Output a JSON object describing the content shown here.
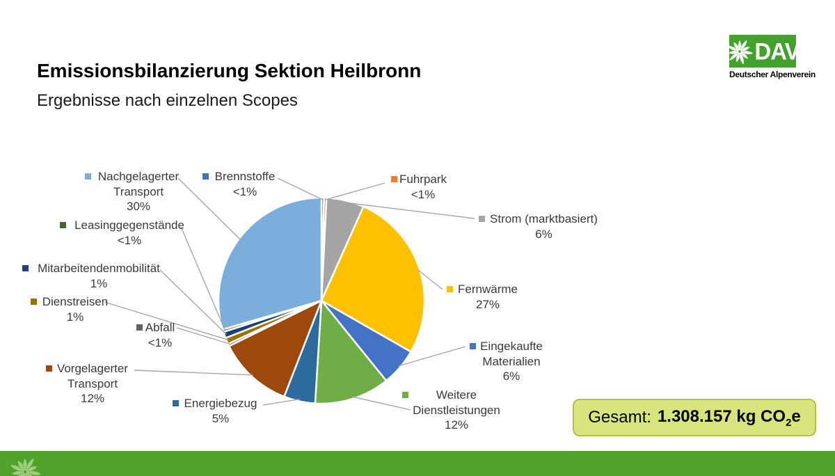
{
  "slide": {
    "title": "Emissionsbilanzierung Sektion Heilbronn",
    "subtitle": "Ergebnisse nach einzelnen Scopes",
    "logo": {
      "acronym": "DAV",
      "org": "Deutscher Alpenverein"
    },
    "total_box": {
      "prefix": "Gesamt:",
      "amount": "1.308.157",
      "unit_main": "kg CO",
      "unit_sub": "2",
      "unit_suffix": "e"
    },
    "colors": {
      "logo_green": "#43a22e",
      "footer_green": "#4fa32b",
      "edelweiss_logo": "#ffffff",
      "edelweiss_footer": "#9fcc7f",
      "total_fill": "#d8e57c",
      "total_border": "#b2c244",
      "leader_line": "#a6a6a6",
      "label_text": "#3a3a3a"
    }
  },
  "chart_data": {
    "type": "pie",
    "title": "Emissionsbilanzierung Sektion Heilbronn — Ergebnisse nach einzelnen Scopes",
    "values_are_percent": true,
    "total_label": "Gesamt: 1.308.157 kg CO2e",
    "segments": [
      {
        "label": "Brennstoffe",
        "percent_label": "<1%",
        "value": 0.4,
        "color": "#4472c4"
      },
      {
        "label": "Fuhrpark",
        "percent_label": "<1%",
        "value": 0.4,
        "color": "#ed7d31"
      },
      {
        "label": "Strom (marktbasiert)",
        "percent_label": "6%",
        "value": 6,
        "color": "#a5a5a5"
      },
      {
        "label": "Fernwärme",
        "percent_label": "27%",
        "value": 27,
        "color": "#ffc000"
      },
      {
        "label": "Eingekaufte Materialien",
        "percent_label": "6%",
        "value": 6,
        "color": "#4472c4"
      },
      {
        "label": "Weitere Dienstleistungen",
        "percent_label": "12%",
        "value": 12,
        "color": "#6fad46"
      },
      {
        "label": "Energiebezug",
        "percent_label": "5%",
        "value": 5,
        "color": "#2d6b9f"
      },
      {
        "label": "Vorgelagerter Transport",
        "percent_label": "12%",
        "value": 12,
        "color": "#9e480e"
      },
      {
        "label": "Abfall",
        "percent_label": "<1%",
        "value": 0.4,
        "color": "#636363"
      },
      {
        "label": "Dienstreisen",
        "percent_label": "1%",
        "value": 1,
        "color": "#997300"
      },
      {
        "label": "Mitarbeitendenmobilität",
        "percent_label": "1%",
        "value": 1,
        "color": "#1f4071"
      },
      {
        "label": "Leasinggegenstände",
        "percent_label": "<1%",
        "value": 0.4,
        "color": "#43682b"
      },
      {
        "label": "Nachgelagerter Transport",
        "percent_label": "30%",
        "value": 30,
        "color": "#7caedc"
      }
    ]
  }
}
